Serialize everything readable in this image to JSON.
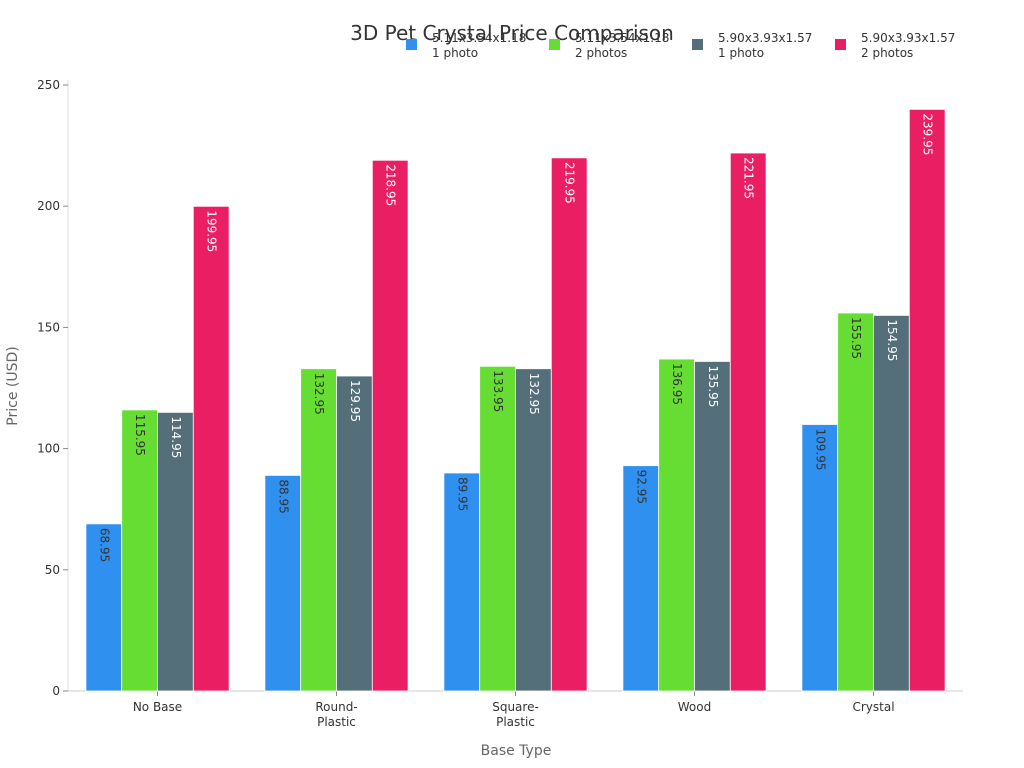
{
  "chart_data": {
    "type": "bar",
    "title": "3D Pet Crystal Price Comparison",
    "xlabel": "Base Type",
    "ylabel": "Price (USD)",
    "categories": [
      "No Base",
      "Round-\nPlastic",
      "Square-\nPlastic",
      "Wood",
      "Crystal"
    ],
    "ylim": [
      0,
      250
    ],
    "yticks": [
      0,
      50,
      100,
      150,
      200,
      250
    ],
    "grid": false,
    "legend_position": "top",
    "series": [
      {
        "name": "5.11x3.54x1.18\n1 photo",
        "color": "#3090F0",
        "label_color": "#333333",
        "values": [
          68.95,
          88.95,
          89.95,
          92.95,
          109.95
        ]
      },
      {
        "name": "5.11x3.54x1.18\n2 photos",
        "color": "#66DD33",
        "label_color": "#333333",
        "values": [
          115.95,
          132.95,
          133.95,
          136.95,
          155.95
        ]
      },
      {
        "name": "5.90x3.93x1.57\n1 photo",
        "color": "#546E7A",
        "label_color": "#ffffff",
        "values": [
          114.95,
          129.95,
          132.95,
          135.95,
          154.95
        ]
      },
      {
        "name": "5.90x3.93x1.57\n2 photos",
        "color": "#E91E63",
        "label_color": "#ffffff",
        "values": [
          199.95,
          218.95,
          219.95,
          221.95,
          239.95
        ]
      }
    ]
  }
}
